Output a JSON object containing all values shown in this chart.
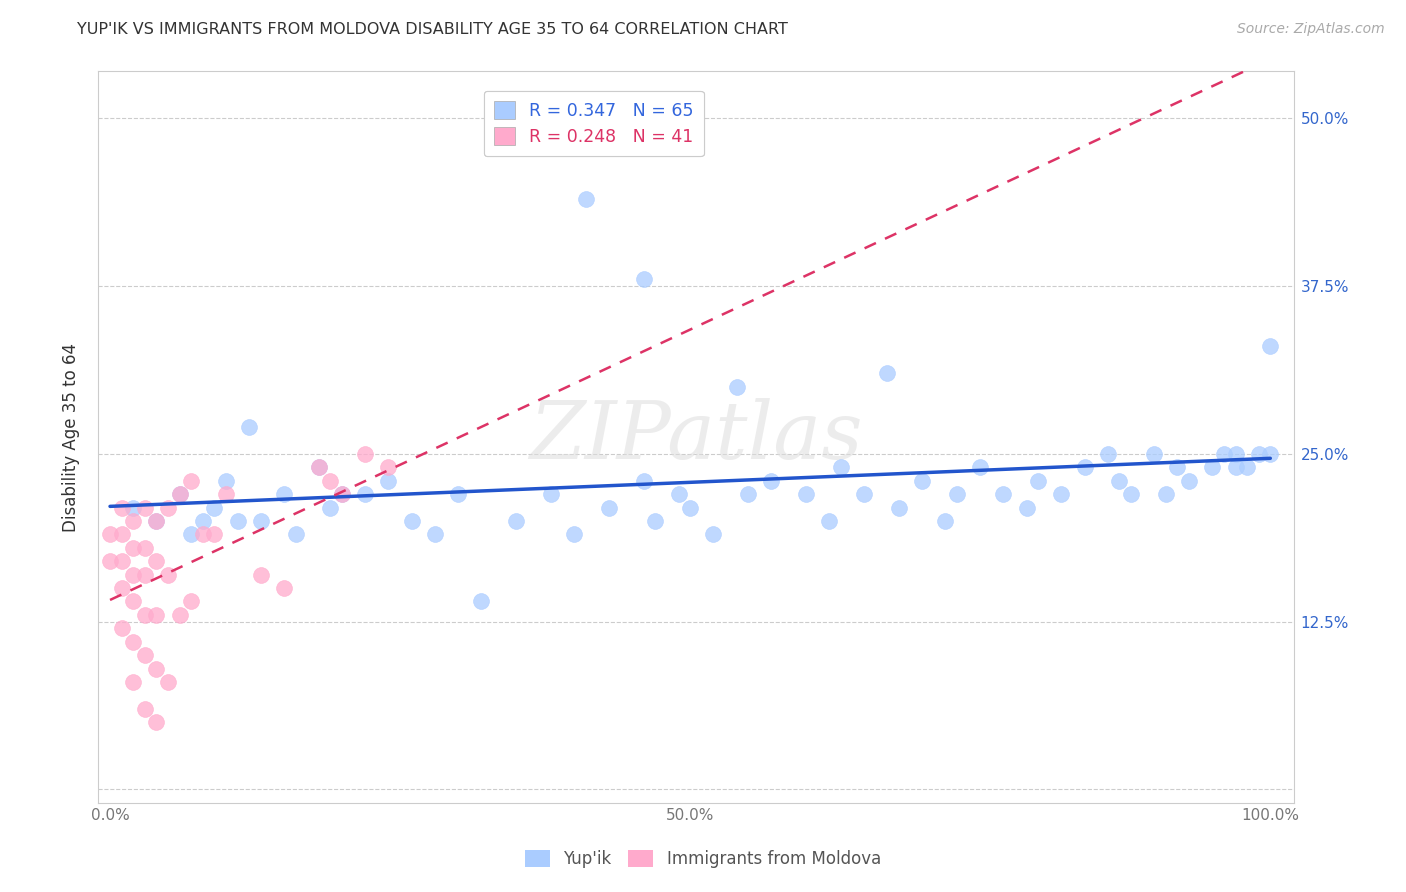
{
  "title": "YUP'IK VS IMMIGRANTS FROM MOLDOVA DISABILITY AGE 35 TO 64 CORRELATION CHART",
  "source": "Source: ZipAtlas.com",
  "ylabel": "Disability Age 35 to 64",
  "r_yupik": 0.347,
  "n_yupik": 65,
  "r_moldova": 0.248,
  "n_moldova": 41,
  "xlim": [
    -0.01,
    1.02
  ],
  "ylim": [
    -0.01,
    0.535
  ],
  "xticks": [
    0.0,
    0.25,
    0.5,
    0.75,
    1.0
  ],
  "xticklabels": [
    "0.0%",
    "",
    "50.0%",
    "",
    "100.0%"
  ],
  "yticks": [
    0.0,
    0.125,
    0.25,
    0.375,
    0.5
  ],
  "right_yticklabels": [
    "",
    "12.5%",
    "25.0%",
    "37.5%",
    "50.0%"
  ],
  "color_yupik": "#aaccff",
  "color_moldova": "#ffaacc",
  "line_color_yupik": "#2255cc",
  "line_color_moldova": "#dd3366",
  "background_color": "#ffffff",
  "watermark": "ZIPatlas",
  "legend_r_color_yupik": "#3366dd",
  "legend_r_color_moldova": "#dd3366",
  "yupik_x": [
    0.02,
    0.04,
    0.06,
    0.07,
    0.08,
    0.09,
    0.1,
    0.11,
    0.12,
    0.13,
    0.15,
    0.16,
    0.18,
    0.19,
    0.2,
    0.22,
    0.24,
    0.26,
    0.28,
    0.3,
    0.32,
    0.35,
    0.38,
    0.4,
    0.43,
    0.46,
    0.47,
    0.49,
    0.5,
    0.52,
    0.55,
    0.57,
    0.6,
    0.62,
    0.63,
    0.65,
    0.67,
    0.68,
    0.7,
    0.72,
    0.73,
    0.75,
    0.77,
    0.79,
    0.8,
    0.82,
    0.84,
    0.86,
    0.87,
    0.88,
    0.9,
    0.91,
    0.92,
    0.93,
    0.95,
    0.96,
    0.97,
    0.97,
    0.98,
    0.99,
    1.0,
    1.0,
    0.46,
    0.54,
    0.41
  ],
  "yupik_y": [
    0.21,
    0.2,
    0.22,
    0.19,
    0.2,
    0.21,
    0.23,
    0.2,
    0.27,
    0.2,
    0.22,
    0.19,
    0.24,
    0.21,
    0.22,
    0.22,
    0.23,
    0.2,
    0.19,
    0.22,
    0.14,
    0.2,
    0.22,
    0.19,
    0.21,
    0.23,
    0.2,
    0.22,
    0.21,
    0.19,
    0.22,
    0.23,
    0.22,
    0.2,
    0.24,
    0.22,
    0.31,
    0.21,
    0.23,
    0.2,
    0.22,
    0.24,
    0.22,
    0.21,
    0.23,
    0.22,
    0.24,
    0.25,
    0.23,
    0.22,
    0.25,
    0.22,
    0.24,
    0.23,
    0.24,
    0.25,
    0.24,
    0.25,
    0.24,
    0.25,
    0.25,
    0.33,
    0.38,
    0.3,
    0.44
  ],
  "moldova_x": [
    0.0,
    0.0,
    0.01,
    0.01,
    0.01,
    0.01,
    0.01,
    0.02,
    0.02,
    0.02,
    0.02,
    0.02,
    0.02,
    0.03,
    0.03,
    0.03,
    0.03,
    0.03,
    0.03,
    0.04,
    0.04,
    0.04,
    0.04,
    0.04,
    0.05,
    0.05,
    0.05,
    0.06,
    0.06,
    0.07,
    0.07,
    0.08,
    0.09,
    0.1,
    0.13,
    0.15,
    0.18,
    0.19,
    0.2,
    0.22,
    0.24
  ],
  "moldova_y": [
    0.19,
    0.17,
    0.21,
    0.19,
    0.17,
    0.15,
    0.12,
    0.2,
    0.18,
    0.16,
    0.14,
    0.11,
    0.08,
    0.21,
    0.18,
    0.16,
    0.13,
    0.1,
    0.06,
    0.2,
    0.17,
    0.13,
    0.09,
    0.05,
    0.21,
    0.16,
    0.08,
    0.22,
    0.13,
    0.23,
    0.14,
    0.19,
    0.19,
    0.22,
    0.16,
    0.15,
    0.24,
    0.23,
    0.22,
    0.25,
    0.24
  ]
}
